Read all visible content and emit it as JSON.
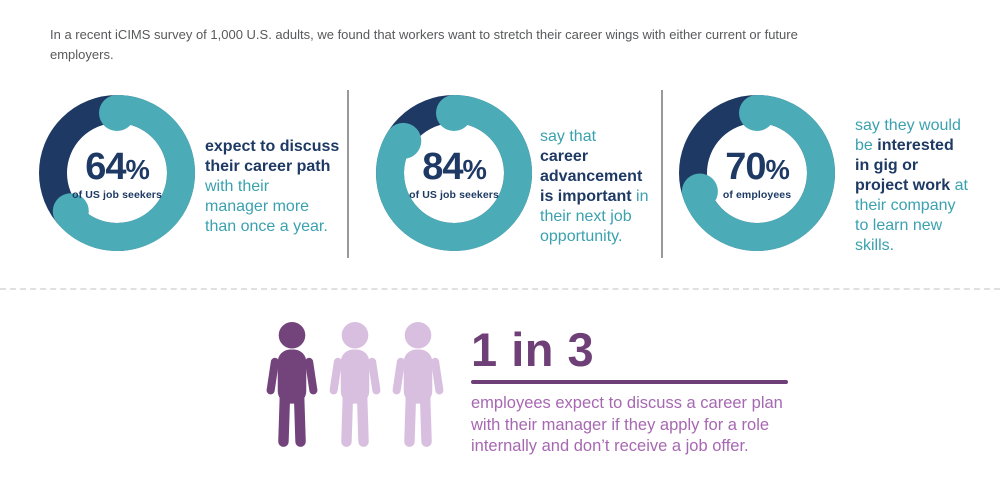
{
  "intro": {
    "lines": [
      "In a recent iCIMS survey of 1,000 U.S. adults, we found that workers want to stretch their career wings with either current or future",
      "employers."
    ]
  },
  "colors": {
    "navy": "#1e3a64",
    "teal": "#4bacb8",
    "teal_text": "#3ba1af",
    "gray_text": "#58595b",
    "divider_gray": "#97999c",
    "dashed_gray": "#e0e0e0",
    "purple_heading": "#6f4077",
    "purple_person": "#73437c",
    "lavender": "#d9bfdf",
    "purple_text": "#a768b2"
  },
  "chart_data": [
    {
      "type": "donut",
      "value": 64,
      "unit": "%",
      "sublabel": "of US job seekers",
      "filled_color": "#4bacb8",
      "remainder_color": "#1e3a64",
      "description_lines": [
        [
          {
            "text": "expect to discuss",
            "style": "bold-navy"
          }
        ],
        [
          {
            "text": "their career path",
            "style": "bold-navy"
          }
        ],
        [
          {
            "text": "with their",
            "style": "teal"
          }
        ],
        [
          {
            "text": "manager more",
            "style": "teal"
          }
        ],
        [
          {
            "text": "than once a year.",
            "style": "teal"
          }
        ]
      ]
    },
    {
      "type": "donut",
      "value": 84,
      "unit": "%",
      "sublabel": "of US job seekers",
      "filled_color": "#4bacb8",
      "remainder_color": "#1e3a64",
      "description_lines": [
        [
          {
            "text": "say that",
            "style": "teal"
          }
        ],
        [
          {
            "text": "career",
            "style": "bold-navy"
          }
        ],
        [
          {
            "text": "advancement",
            "style": "bold-navy"
          }
        ],
        [
          {
            "text": "is important",
            "style": "bold-navy"
          },
          {
            "text": " in",
            "style": "teal"
          }
        ],
        [
          {
            "text": "their next job",
            "style": "teal"
          }
        ],
        [
          {
            "text": "opportunity.",
            "style": "teal"
          }
        ]
      ]
    },
    {
      "type": "donut",
      "value": 70,
      "unit": "%",
      "sublabel": "of employees",
      "filled_color": "#4bacb8",
      "remainder_color": "#1e3a64",
      "description_lines": [
        [
          {
            "text": "say they would",
            "style": "teal"
          }
        ],
        [
          {
            "text": "be ",
            "style": "teal"
          },
          {
            "text": "interested",
            "style": "bold-navy"
          }
        ],
        [
          {
            "text": "in gig or",
            "style": "bold-navy"
          }
        ],
        [
          {
            "text": "project work",
            "style": "bold-navy"
          },
          {
            "text": " at",
            "style": "teal"
          }
        ],
        [
          {
            "text": "their company",
            "style": "teal"
          }
        ],
        [
          {
            "text": "to learn new",
            "style": "teal"
          }
        ],
        [
          {
            "text": "skills.",
            "style": "teal"
          }
        ]
      ]
    },
    {
      "type": "pictograph",
      "ratio_label": "1 in 3",
      "highlighted_count": 1,
      "total_count": 3,
      "description_lines": [
        "employees expect to discuss a career plan",
        "with their manager if they apply for a role",
        "internally and don’t receive a job offer."
      ]
    }
  ]
}
